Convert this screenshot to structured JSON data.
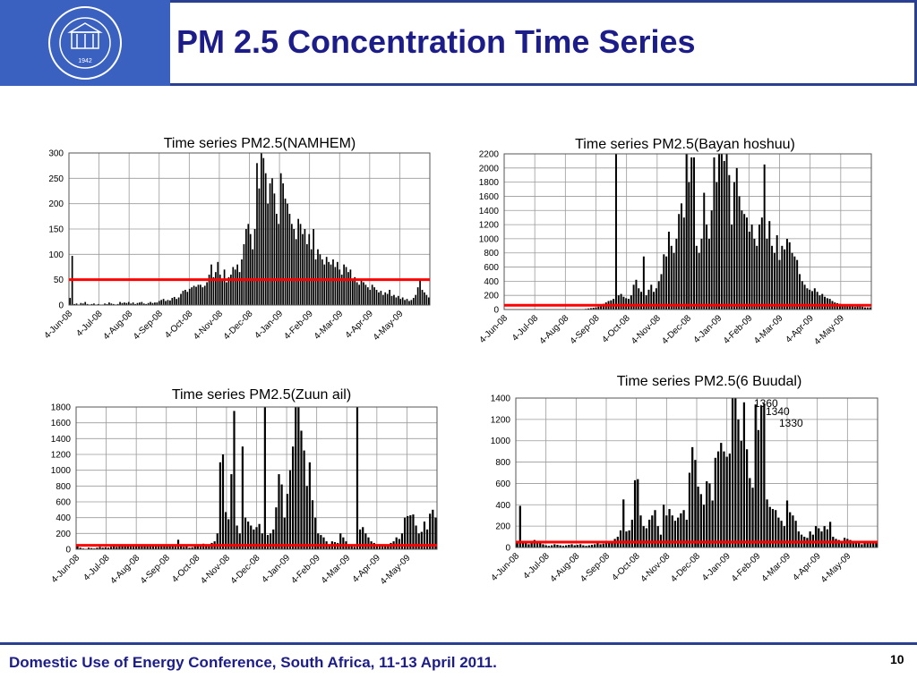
{
  "header": {
    "title": "PM 2.5 Concentration Time Series",
    "logo": {
      "year": "1942",
      "icon": "university-emblem-icon",
      "color": "#3a61c0"
    }
  },
  "footer": {
    "text": "Domestic Use of Energy Conference, South Africa, 11-13 April 2011.",
    "page": "10"
  },
  "colors": {
    "bar": "#000000",
    "threshold": "#ff0000",
    "title": "#1d1d8a",
    "rule": "#2a3f8f"
  },
  "chart_data": [
    {
      "type": "bar",
      "title": "Time series PM2.5(NAMHEM)",
      "ylim": [
        0,
        300
      ],
      "yticks": [
        "0",
        "50",
        "100",
        "150",
        "200",
        "250",
        "300"
      ],
      "xticks": [
        "4-Jun-08",
        "4-Jul-08",
        "4-Aug-08",
        "4-Sep-08",
        "4-Oct-08",
        "4-Nov-08",
        "4-Dec-08",
        "4-Jan-09",
        "4-Feb-09",
        "4-Mar-09",
        "4-Apr-09",
        "4-May-09"
      ],
      "threshold": 50,
      "grid": true,
      "annotations": [],
      "series": [
        {
          "values": [
            14,
            97,
            2,
            3,
            1,
            4,
            3,
            6,
            2,
            1,
            2,
            3,
            1,
            2,
            1,
            1,
            3,
            2,
            5,
            3,
            2,
            1,
            2,
            6,
            4,
            5,
            4,
            6,
            3,
            5,
            2,
            4,
            5,
            6,
            3,
            2,
            4,
            6,
            4,
            5,
            5,
            8,
            10,
            12,
            8,
            10,
            9,
            14,
            16,
            12,
            15,
            22,
            28,
            30,
            26,
            32,
            35,
            38,
            36,
            40,
            40,
            35,
            38,
            45,
            60,
            80,
            55,
            65,
            85,
            60,
            50,
            70,
            45,
            55,
            60,
            75,
            70,
            80,
            65,
            90,
            120,
            150,
            160,
            140,
            110,
            150,
            280,
            230,
            300,
            290,
            260,
            200,
            240,
            250,
            220,
            180,
            160,
            260,
            240,
            210,
            200,
            180,
            160,
            150,
            130,
            170,
            160,
            140,
            150,
            120,
            140,
            110,
            150,
            90,
            110,
            100,
            90,
            80,
            95,
            85,
            80,
            90,
            75,
            85,
            70,
            60,
            80,
            75,
            65,
            70,
            50,
            55,
            45,
            40,
            50,
            45,
            40,
            35,
            30,
            40,
            35,
            30,
            25,
            28,
            20,
            25,
            22,
            30,
            18,
            20,
            15,
            18,
            12,
            15,
            10,
            12,
            8,
            10,
            14,
            20,
            35,
            50,
            30,
            25,
            20,
            15
          ]
        }
      ]
    },
    {
      "type": "bar",
      "title": "Time series PM2.5(Bayan hoshuu)",
      "ylim": [
        0,
        2200
      ],
      "yticks": [
        "0",
        "200",
        "400",
        "600",
        "800",
        "1000",
        "1200",
        "1400",
        "1600",
        "1800",
        "2000",
        "2200"
      ],
      "xticks": [
        "4-Jun-08",
        "4-Jul-08",
        "4-Aug-08",
        "4-Sep-08",
        "4-Oct-08",
        "4-Nov-08",
        "4-Dec-08",
        "4-Jan-09",
        "4-Feb-09",
        "4-Mar-09",
        "4-Apr-09",
        "4-May-09"
      ],
      "threshold": 60,
      "grid": true,
      "annotations": [],
      "series": [
        {
          "values": [
            0,
            0,
            0,
            0,
            0,
            0,
            0,
            0,
            0,
            0,
            0,
            0,
            0,
            0,
            0,
            0,
            0,
            0,
            0,
            0,
            0,
            0,
            0,
            0,
            0,
            0,
            0,
            0,
            0,
            0,
            0,
            0,
            10,
            15,
            20,
            25,
            30,
            40,
            50,
            80,
            100,
            120,
            130,
            150,
            2200,
            200,
            220,
            180,
            160,
            150,
            200,
            350,
            420,
            300,
            250,
            750,
            200,
            280,
            350,
            250,
            300,
            400,
            500,
            780,
            750,
            1100,
            900,
            800,
            1000,
            1350,
            1500,
            1300,
            2200,
            1800,
            2150,
            2150,
            900,
            800,
            1000,
            1650,
            1200,
            1000,
            1400,
            2150,
            1800,
            2200,
            2200,
            2100,
            2200,
            1900,
            1200,
            1800,
            2000,
            1600,
            1400,
            1350,
            1300,
            1100,
            1200,
            1000,
            900,
            1200,
            1300,
            2050,
            1000,
            1250,
            900,
            800,
            1050,
            700,
            900,
            850,
            1000,
            950,
            800,
            750,
            700,
            500,
            400,
            350,
            300,
            280,
            260,
            300,
            250,
            200,
            220,
            180,
            160,
            150,
            120,
            100,
            90,
            80,
            70,
            60,
            70,
            60,
            50,
            40,
            60,
            50,
            40,
            30,
            30,
            30
          ]
        }
      ]
    },
    {
      "type": "bar",
      "title": "Time series PM2.5(Zuun ail)",
      "ylim": [
        0,
        1800
      ],
      "yticks": [
        "0",
        "200",
        "400",
        "600",
        "800",
        "1000",
        "1200",
        "1400",
        "1600",
        "1800"
      ],
      "xticks": [
        "4-Jun-08",
        "4-Jul-08",
        "4-Aug-08",
        "4-Sep-08",
        "4-Oct-08",
        "4-Nov-08",
        "4-Dec-08",
        "4-Jan-09",
        "4-Feb-09",
        "4-Mar-09",
        "4-Apr-09",
        "4-May-09"
      ],
      "threshold": 50,
      "grid": true,
      "annotations": [],
      "series": [
        {
          "values": [
            40,
            20,
            10,
            5,
            20,
            15,
            10,
            20,
            30,
            20,
            25,
            20,
            30,
            40,
            30,
            50,
            45,
            60,
            50,
            55,
            60,
            50,
            55,
            60,
            45,
            50,
            60,
            55,
            50,
            60,
            45,
            60,
            50,
            40,
            55,
            60,
            120,
            40,
            30,
            35,
            20,
            25,
            40,
            50,
            60,
            70,
            60,
            50,
            80,
            100,
            200,
            1100,
            1200,
            470,
            380,
            950,
            1750,
            300,
            200,
            1300,
            400,
            350,
            300,
            250,
            280,
            320,
            200,
            1820,
            180,
            200,
            250,
            530,
            950,
            820,
            400,
            700,
            1000,
            1300,
            1850,
            1820,
            1500,
            1250,
            800,
            1100,
            620,
            400,
            200,
            180,
            150,
            100,
            60,
            100,
            90,
            80,
            200,
            150,
            100,
            60,
            50,
            30,
            1800,
            250,
            280,
            200,
            150,
            100,
            80,
            60,
            50,
            40,
            50,
            60,
            80,
            100,
            150,
            130,
            200,
            400,
            420,
            430,
            440,
            300,
            200,
            220,
            350,
            250,
            450,
            500,
            400
          ]
        }
      ]
    },
    {
      "type": "bar",
      "title": "Time series PM2.5(6  Buudal)",
      "ylim": [
        0,
        1400
      ],
      "yticks": [
        "0",
        "200",
        "400",
        "600",
        "800",
        "1000",
        "1200",
        "1400"
      ],
      "xticks": [
        "4-Jun-08",
        "4-Jul-08",
        "4-Aug-08",
        "4-Sep-08",
        "4-Oct-08",
        "4-Nov-08",
        "4-Dec-08",
        "4-Jan-09",
        "4-Feb-09",
        "4-Mar-09",
        "4-Apr-09",
        "4-May-09"
      ],
      "threshold": 50,
      "grid": true,
      "annotations": [
        "1360",
        "1340",
        "1330"
      ],
      "series": [
        {
          "values": [
            60,
            390,
            50,
            40,
            30,
            60,
            70,
            50,
            40,
            30,
            20,
            15,
            20,
            30,
            25,
            20,
            15,
            20,
            25,
            30,
            20,
            25,
            30,
            20,
            15,
            20,
            25,
            30,
            40,
            30,
            35,
            40,
            50,
            60,
            80,
            100,
            160,
            450,
            150,
            160,
            260,
            630,
            640,
            300,
            200,
            180,
            260,
            300,
            350,
            200,
            120,
            400,
            300,
            360,
            300,
            250,
            280,
            320,
            350,
            260,
            700,
            940,
            820,
            570,
            500,
            400,
            620,
            600,
            440,
            840,
            900,
            980,
            900,
            850,
            880,
            1400,
            1400,
            1200,
            1000,
            1360,
            920,
            650,
            560,
            1340,
            1100,
            1330,
            1350,
            450,
            380,
            360,
            350,
            280,
            250,
            200,
            440,
            330,
            300,
            250,
            150,
            120,
            100,
            90,
            150,
            120,
            200,
            180,
            150,
            200,
            170,
            240,
            100,
            80,
            70,
            60,
            90,
            80,
            70,
            60,
            50,
            40,
            30,
            50,
            40,
            60,
            50,
            40
          ]
        }
      ]
    }
  ]
}
